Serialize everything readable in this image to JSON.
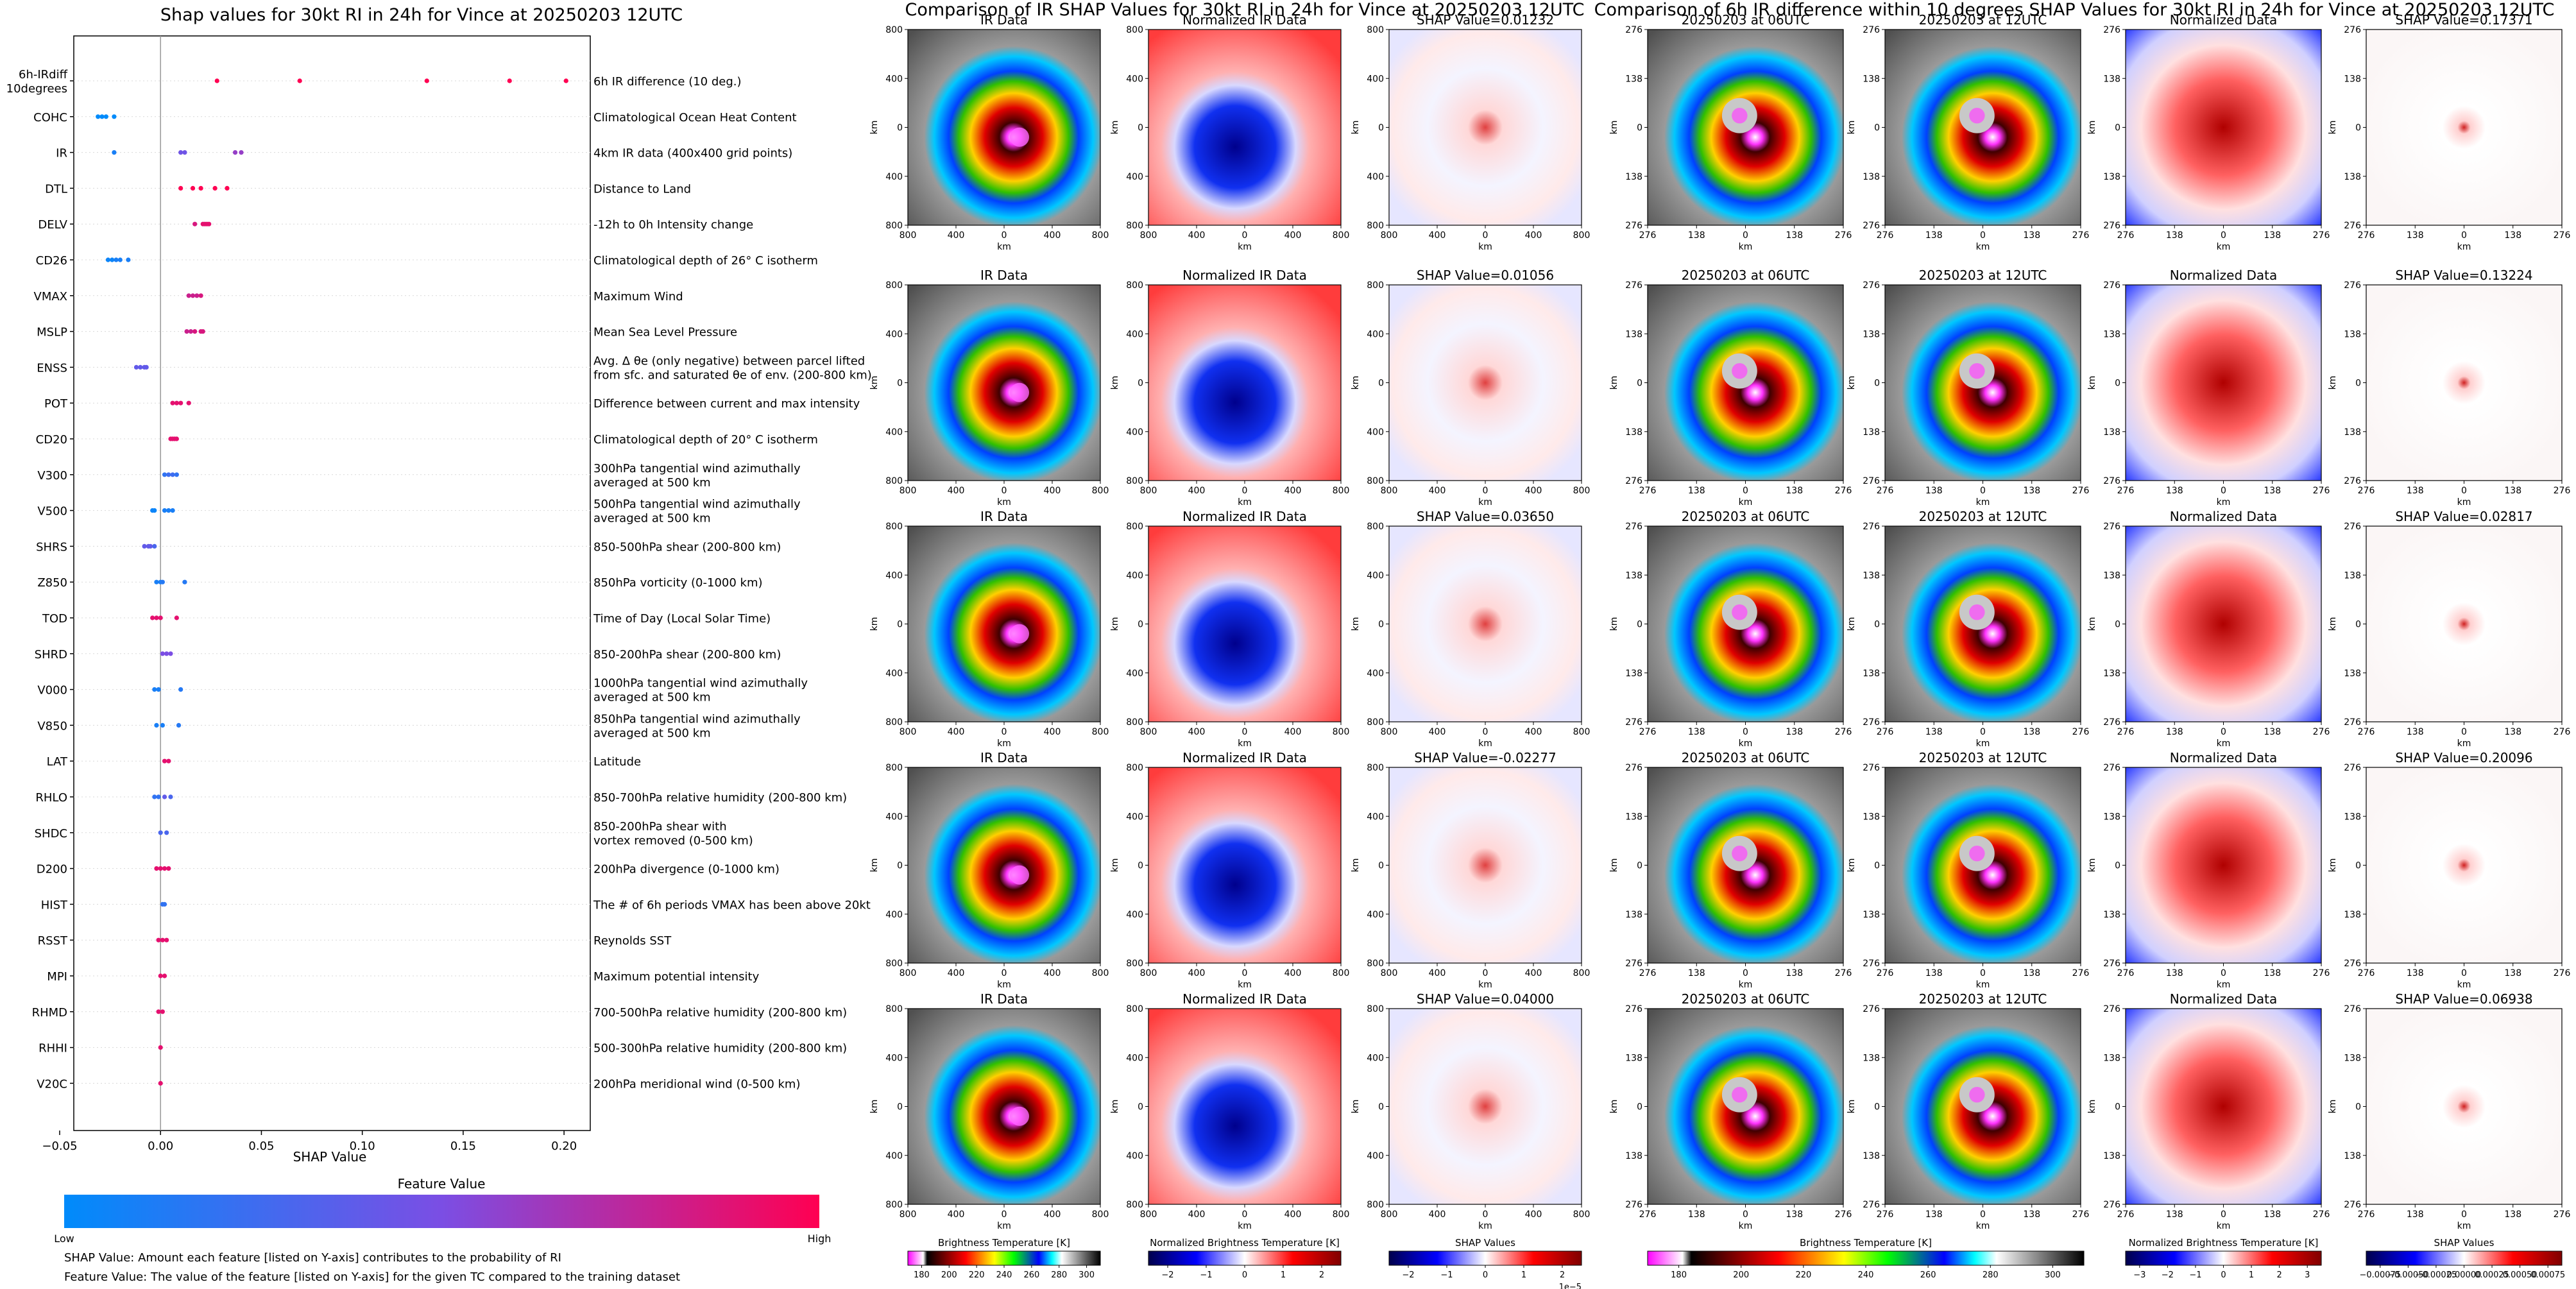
{
  "chart_data": [
    {
      "type": "scatter",
      "title": "Shap values for 30kt RI in 24h for Vince at 20250203 12UTC",
      "xlabel": "SHAP Value",
      "xlim": [
        -0.043,
        0.213
      ],
      "x_ticks": [
        "−0.05",
        "0.00",
        "0.05",
        "0.10",
        "0.15",
        "0.20"
      ],
      "x_tick_values": [
        -0.05,
        0.0,
        0.05,
        0.1,
        0.15,
        0.2
      ],
      "colorbar": {
        "label": "Feature Value",
        "low": "Low",
        "high": "High",
        "colors": [
          "#008bfb",
          "#7b4ee4",
          "#ff0052"
        ]
      },
      "features": [
        {
          "name": "6h-IRdiff\n10degrees",
          "desc": "6h IR difference (10 deg.)",
          "pts": [
            [
              0.028,
              1
            ],
            [
              0.069,
              1
            ],
            [
              0.132,
              1
            ],
            [
              0.173,
              1
            ],
            [
              0.201,
              1
            ]
          ]
        },
        {
          "name": "COHC",
          "desc": "Climatological Ocean Heat Content",
          "pts": [
            [
              -0.031,
              0
            ],
            [
              -0.029,
              0
            ],
            [
              -0.027,
              0
            ],
            [
              -0.023,
              0
            ]
          ]
        },
        {
          "name": "IR",
          "desc": "4km IR data (400x400 grid points)",
          "pts": [
            [
              -0.023,
              0.1
            ],
            [
              0.01,
              0.45
            ],
            [
              0.012,
              0.45
            ],
            [
              0.037,
              0.6
            ],
            [
              0.04,
              0.6
            ]
          ]
        },
        {
          "name": "DTL",
          "desc": "Distance to Land",
          "pts": [
            [
              0.01,
              1
            ],
            [
              0.016,
              1
            ],
            [
              0.02,
              1
            ],
            [
              0.027,
              1
            ],
            [
              0.033,
              1
            ]
          ]
        },
        {
          "name": "DELV",
          "desc": "-12h to 0h Intensity change",
          "pts": [
            [
              0.017,
              0.85
            ],
            [
              0.021,
              0.9
            ],
            [
              0.022,
              0.9
            ],
            [
              0.023,
              0.9
            ],
            [
              0.024,
              0.9
            ]
          ]
        },
        {
          "name": "CD26",
          "desc": "Climatological depth of 26° C isotherm",
          "pts": [
            [
              -0.026,
              0.05
            ],
            [
              -0.024,
              0.05
            ],
            [
              -0.022,
              0.1
            ],
            [
              -0.02,
              0.1
            ],
            [
              -0.016,
              0.1
            ]
          ]
        },
        {
          "name": "VMAX",
          "desc": "Maximum Wind",
          "pts": [
            [
              0.014,
              0.8
            ],
            [
              0.016,
              0.8
            ],
            [
              0.018,
              0.8
            ],
            [
              0.02,
              0.85
            ]
          ]
        },
        {
          "name": "MSLP",
          "desc": "Mean Sea Level Pressure",
          "pts": [
            [
              0.013,
              0.8
            ],
            [
              0.015,
              0.8
            ],
            [
              0.017,
              0.85
            ],
            [
              0.02,
              0.85
            ],
            [
              0.021,
              0.85
            ]
          ]
        },
        {
          "name": "ENSS",
          "desc": "Avg. Δ θe (only negative) between parcel lifted\nfrom sfc. and saturated θe of env. (200-800 km)",
          "pts": [
            [
              -0.012,
              0.4
            ],
            [
              -0.01,
              0.4
            ],
            [
              -0.008,
              0.4
            ],
            [
              -0.007,
              0.4
            ]
          ]
        },
        {
          "name": "POT",
          "desc": "Difference between current and max intensity",
          "pts": [
            [
              0.006,
              0.9
            ],
            [
              0.008,
              0.9
            ],
            [
              0.01,
              0.9
            ],
            [
              0.014,
              0.9
            ]
          ]
        },
        {
          "name": "CD20",
          "desc": "Climatological depth of 20° C isotherm",
          "pts": [
            [
              0.005,
              0.9
            ],
            [
              0.006,
              0.9
            ],
            [
              0.007,
              0.9
            ],
            [
              0.008,
              0.9
            ]
          ]
        },
        {
          "name": "V300",
          "desc": "300hPa tangential wind azimuthally\naveraged at 500 km",
          "pts": [
            [
              0.002,
              0.2
            ],
            [
              0.004,
              0.25
            ],
            [
              0.006,
              0.25
            ],
            [
              0.008,
              0.2
            ]
          ]
        },
        {
          "name": "V500",
          "desc": "500hPa tangential wind azimuthally\naveraged at 500 km",
          "pts": [
            [
              -0.004,
              0.05
            ],
            [
              -0.003,
              0.05
            ],
            [
              0.002,
              0.1
            ],
            [
              0.004,
              0.1
            ],
            [
              0.006,
              0.1
            ]
          ]
        },
        {
          "name": "SHRS",
          "desc": "850-500hPa shear (200-800 km)",
          "pts": [
            [
              -0.008,
              0.4
            ],
            [
              -0.006,
              0.4
            ],
            [
              -0.005,
              0.4
            ],
            [
              -0.003,
              0.3
            ]
          ]
        },
        {
          "name": "Z850",
          "desc": "850hPa vorticity (0-1000 km)",
          "pts": [
            [
              -0.002,
              0.1
            ],
            [
              0.0,
              0.1
            ],
            [
              0.001,
              0.15
            ],
            [
              0.012,
              0.15
            ]
          ]
        },
        {
          "name": "TOD",
          "desc": "Time of Day (Local Solar Time)",
          "pts": [
            [
              -0.004,
              0.9
            ],
            [
              -0.002,
              0.9
            ],
            [
              0.0,
              0.9
            ],
            [
              0.008,
              0.9
            ]
          ]
        },
        {
          "name": "SHRD",
          "desc": "850-200hPa shear (200-800 km)",
          "pts": [
            [
              0.001,
              0.5
            ],
            [
              0.003,
              0.5
            ],
            [
              0.005,
              0.5
            ]
          ]
        },
        {
          "name": "V000",
          "desc": "1000hPa tangential wind azimuthally\naveraged at 500 km",
          "pts": [
            [
              -0.003,
              0.1
            ],
            [
              -0.001,
              0.1
            ],
            [
              0.01,
              0.15
            ]
          ]
        },
        {
          "name": "V850",
          "desc": "850hPa tangential wind azimuthally\naveraged at 500 km",
          "pts": [
            [
              -0.002,
              0.1
            ],
            [
              0.001,
              0.1
            ],
            [
              0.009,
              0.15
            ]
          ]
        },
        {
          "name": "LAT",
          "desc": "Latitude",
          "pts": [
            [
              0.002,
              0.9
            ],
            [
              0.004,
              0.9
            ]
          ]
        },
        {
          "name": "RHLO",
          "desc": "850-700hPa relative humidity (200-800 km)",
          "pts": [
            [
              -0.003,
              0.2
            ],
            [
              -0.001,
              0.2
            ],
            [
              0.002,
              0.4
            ],
            [
              0.005,
              0.3
            ]
          ]
        },
        {
          "name": "SHDC",
          "desc": "850-200hPa shear with\nvortex removed (0-500 km)",
          "pts": [
            [
              0.0,
              0.3
            ],
            [
              0.003,
              0.3
            ]
          ]
        },
        {
          "name": "D200",
          "desc": "200hPa divergence (0-1000 km)",
          "pts": [
            [
              -0.002,
              0.9
            ],
            [
              0.0,
              0.9
            ],
            [
              0.002,
              0.9
            ],
            [
              0.004,
              0.9
            ]
          ]
        },
        {
          "name": "HIST",
          "desc": "The # of 6h periods VMAX has been above 20kt",
          "pts": [
            [
              0.001,
              0.2
            ],
            [
              0.002,
              0.2
            ]
          ]
        },
        {
          "name": "RSST",
          "desc": "Reynolds SST",
          "pts": [
            [
              -0.001,
              0.9
            ],
            [
              0.001,
              0.9
            ],
            [
              0.003,
              0.9
            ]
          ]
        },
        {
          "name": "MPI",
          "desc": "Maximum potential intensity",
          "pts": [
            [
              0.0,
              0.9
            ],
            [
              0.002,
              0.9
            ]
          ]
        },
        {
          "name": "RHMD",
          "desc": "700-500hPa relative humidity (200-800 km)",
          "pts": [
            [
              -0.001,
              0.9
            ],
            [
              0.001,
              0.9
            ]
          ]
        },
        {
          "name": "RHHI",
          "desc": "500-300hPa relative humidity (200-800 km)",
          "pts": [
            [
              0.0,
              0.9
            ]
          ]
        },
        {
          "name": "V20C",
          "desc": "200hPa meridional wind (0-500 km)",
          "pts": [
            [
              0.0,
              0.9
            ]
          ]
        }
      ]
    },
    {
      "type": "heatmap",
      "title": "Comparison of IR SHAP Values for 30kt RI in 24h for Vince at 20250203 12UTC",
      "column_titles": [
        "IR Data",
        "Normalized IR Data"
      ],
      "shap_titles": [
        "SHAP Value=0.01232",
        "SHAP Value=0.01056",
        "SHAP Value=0.03650",
        "SHAP Value=-0.02277",
        "SHAP Value=0.04000"
      ],
      "xlabel": "km",
      "ylabel": "km",
      "x_ticks": [
        "800",
        "400",
        "0",
        "400",
        "800"
      ],
      "y_ticks": [
        "800",
        "400",
        "0",
        "400",
        "800"
      ],
      "colorbars": [
        {
          "label": "Brightness Temperature [K]",
          "ticks": [
            "180",
            "200",
            "220",
            "240",
            "260",
            "280",
            "300"
          ]
        },
        {
          "label": "Normalized Brightness Temperature [K]",
          "ticks": [
            "−2",
            "−1",
            "0",
            "1",
            "2"
          ]
        },
        {
          "label": "SHAP Values",
          "ticks": [
            "−2",
            "−1",
            "0",
            "1",
            "2"
          ],
          "offset": "1e−5"
        }
      ]
    },
    {
      "type": "heatmap",
      "title": "Comparison of 6h IR difference within 10 degrees SHAP Values for 30kt RI in 24h for Vince at 20250203 12UTC",
      "column_titles": [
        "20250203 at 06UTC",
        "20250203 at 12UTC",
        "Normalized Data"
      ],
      "shap_titles": [
        "SHAP Value=0.17371",
        "SHAP Value=0.13224",
        "SHAP Value=0.02817",
        "SHAP Value=0.20096",
        "SHAP Value=0.06938"
      ],
      "xlabel": "km",
      "ylabel": "km",
      "x_ticks": [
        "276",
        "138",
        "0",
        "138",
        "276"
      ],
      "y_ticks": [
        "276",
        "138",
        "0",
        "138",
        "276"
      ],
      "colorbars": [
        {
          "label": "Brightness Temperature [K]",
          "ticks": [
            "180",
            "200",
            "220",
            "240",
            "260",
            "280",
            "300"
          ]
        },
        {
          "label": "Normalized Brightness Temperature [K]",
          "ticks": [
            "−3",
            "−2",
            "−1",
            "0",
            "1",
            "2",
            "3"
          ]
        },
        {
          "label": "SHAP Values",
          "ticks": [
            "−0.00075",
            "−0.00050",
            "−0.00025",
            "0.00000",
            "0.00025",
            "0.00050",
            "0.00075"
          ]
        }
      ]
    }
  ],
  "notes": [
    "SHAP Value: Amount each feature [listed on Y-axis] contributes to the probability of RI",
    "Feature Value: The value of the feature [listed on Y-axis] for the given TC compared to the training dataset"
  ],
  "colors": {
    "low": "#008bfb",
    "high": "#ff0052"
  }
}
